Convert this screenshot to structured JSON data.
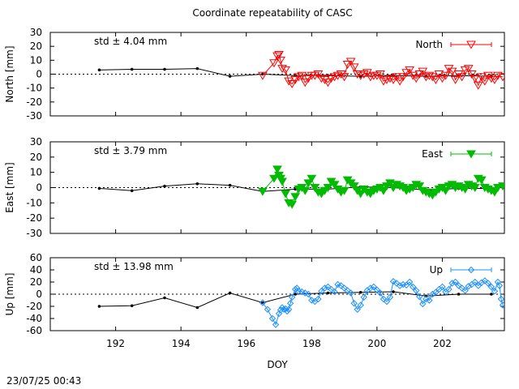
{
  "figure_title": "Coordinate repeatability of CASC",
  "footer_timestamp": "23/07/25 00:43",
  "chart_data": [
    {
      "type": "line",
      "ylabel": "North [mm]",
      "xlabel": "",
      "xlim": [
        190.0,
        203.9
      ],
      "ylim": [
        -30,
        30
      ],
      "yticks": [
        -30,
        -20,
        -10,
        0,
        10,
        20,
        30
      ],
      "xticks": [],
      "zero_line": true,
      "std_label": "std ± 4.04 mm",
      "color": "#ff0000",
      "marker": "triangle-down-open",
      "legend": {
        "label": "North",
        "position": "top-right"
      },
      "series": [
        {
          "name": "reference",
          "color": "#000000",
          "marker": "dot",
          "x": [
            191.5,
            192.5,
            193.5,
            194.5,
            195.5,
            196.5,
            197.5,
            198.5,
            199.5,
            200.5,
            201.5,
            202.5,
            203.5
          ],
          "values": [
            3,
            3.5,
            3.5,
            4,
            -1.5,
            0,
            -1,
            -1,
            -1.5,
            -1,
            -1.5,
            -1,
            -1.5
          ]
        },
        {
          "name": "North",
          "x": [
            196.5,
            196.85,
            196.95,
            197.0,
            197.05,
            197.1,
            197.2,
            197.3,
            197.4,
            197.5,
            197.6,
            197.7,
            197.8,
            197.9,
            198.0,
            198.1,
            198.2,
            198.3,
            198.4,
            198.5,
            198.6,
            198.7,
            198.8,
            198.9,
            199.0,
            199.1,
            199.2,
            199.3,
            199.4,
            199.5,
            199.6,
            199.7,
            199.8,
            199.9,
            200.0,
            200.1,
            200.2,
            200.3,
            200.4,
            200.5,
            200.6,
            200.7,
            200.8,
            200.9,
            201.0,
            201.1,
            201.2,
            201.3,
            201.4,
            201.5,
            201.6,
            201.7,
            201.8,
            201.9,
            202.0,
            202.1,
            202.2,
            202.3,
            202.4,
            202.5,
            202.6,
            202.7,
            202.8,
            202.9,
            203.0,
            203.1,
            203.2,
            203.3,
            203.4,
            203.5,
            203.6,
            203.7,
            203.85
          ],
          "values": [
            -1,
            8,
            13,
            14,
            10,
            4,
            3,
            -5,
            -7,
            -4,
            -2,
            -1,
            -6,
            -3,
            -1,
            -1,
            0,
            -3,
            -4,
            -6,
            -3,
            -2,
            -1,
            0,
            -2,
            7,
            9,
            5,
            0,
            -1,
            0,
            1,
            -2,
            -1,
            -1,
            0,
            -5,
            -4,
            -3,
            -4,
            -2,
            -5,
            -2,
            1,
            3,
            -1,
            -3,
            0,
            2,
            -2,
            -1,
            -2,
            -4,
            0,
            -3,
            -1,
            4,
            2,
            -4,
            0,
            -2,
            3,
            4,
            0,
            -3,
            -8,
            -2,
            -5,
            -1,
            -3,
            -4,
            -1,
            -2
          ]
        }
      ]
    },
    {
      "type": "line",
      "ylabel": "East [mm]",
      "xlabel": "",
      "xlim": [
        190.0,
        203.9
      ],
      "ylim": [
        -30,
        30
      ],
      "yticks": [
        -30,
        -20,
        -10,
        0,
        10,
        20,
        30
      ],
      "xticks": [],
      "zero_line": true,
      "std_label": "std ± 3.79 mm",
      "color": "#00bb00",
      "marker": "triangle-down-filled",
      "legend": {
        "label": "East",
        "position": "top-right"
      },
      "series": [
        {
          "name": "reference",
          "color": "#000000",
          "marker": "dot",
          "x": [
            191.5,
            192.5,
            193.5,
            194.5,
            195.5,
            196.5,
            197.5,
            198.5,
            199.5,
            200.5,
            201.5,
            202.5,
            203.5
          ],
          "values": [
            -0.5,
            -2,
            1,
            2.5,
            1.5,
            -2.5,
            -1,
            -1,
            0.5,
            0,
            -1.5,
            -0.5,
            -0.5
          ]
        },
        {
          "name": "East",
          "x": [
            196.5,
            196.85,
            196.95,
            197.0,
            197.05,
            197.1,
            197.2,
            197.3,
            197.4,
            197.5,
            197.6,
            197.7,
            197.8,
            197.9,
            198.0,
            198.1,
            198.2,
            198.3,
            198.4,
            198.5,
            198.6,
            198.7,
            198.8,
            198.9,
            199.0,
            199.1,
            199.2,
            199.3,
            199.4,
            199.5,
            199.6,
            199.7,
            199.8,
            199.9,
            200.0,
            200.1,
            200.2,
            200.3,
            200.4,
            200.5,
            200.6,
            200.7,
            200.8,
            200.9,
            201.0,
            201.1,
            201.2,
            201.3,
            201.4,
            201.5,
            201.6,
            201.7,
            201.8,
            201.9,
            202.0,
            202.1,
            202.2,
            202.3,
            202.4,
            202.5,
            202.6,
            202.7,
            202.8,
            202.9,
            203.0,
            203.1,
            203.2,
            203.3,
            203.4,
            203.5,
            203.6,
            203.7,
            203.85
          ],
          "values": [
            -2.5,
            6,
            12,
            8,
            6,
            4,
            -4,
            -10,
            -11,
            -6,
            -1,
            0,
            -2,
            3,
            6,
            0,
            -3,
            -4,
            -2,
            0,
            4,
            2,
            -1,
            -3,
            -2,
            5,
            3,
            1,
            -2,
            -4,
            -1,
            -3,
            -4,
            -2,
            -1,
            0,
            -2,
            1,
            3,
            0,
            2,
            1,
            0,
            -2,
            -1,
            0,
            2,
            1,
            -2,
            -3,
            -4,
            -5,
            -3,
            -1,
            0,
            -2,
            1,
            2,
            0,
            1,
            0,
            -1,
            2,
            1,
            0,
            6,
            5,
            0,
            -1,
            -2,
            -3,
            0,
            1
          ]
        }
      ]
    },
    {
      "type": "line",
      "ylabel": "Up [mm]",
      "xlabel": "DOY",
      "xlim": [
        190.0,
        203.9
      ],
      "ylim": [
        -60,
        60
      ],
      "yticks": [
        -60,
        -40,
        -20,
        0,
        20,
        40,
        60
      ],
      "xticks": [
        192,
        194,
        196,
        198,
        200,
        202
      ],
      "zero_line": true,
      "std_label": "std ± 13.98 mm",
      "color": "#1e90ff",
      "marker": "diamond-open",
      "legend": {
        "label": "Up",
        "position": "top-right"
      },
      "series": [
        {
          "name": "reference",
          "color": "#000000",
          "marker": "dot",
          "x": [
            191.5,
            192.5,
            193.5,
            194.5,
            195.5,
            196.5,
            197.5,
            198.5,
            199.5,
            200.5,
            201.5,
            202.5,
            203.5
          ],
          "values": [
            -20,
            -19,
            -6,
            -22,
            2,
            -14,
            0,
            2,
            3,
            4,
            -3,
            0,
            0
          ]
        },
        {
          "name": "Up",
          "x": [
            196.5,
            196.65,
            196.8,
            196.9,
            197.0,
            197.05,
            197.1,
            197.15,
            197.2,
            197.25,
            197.3,
            197.35,
            197.4,
            197.5,
            197.55,
            197.6,
            197.7,
            197.8,
            197.9,
            198.0,
            198.1,
            198.2,
            198.3,
            198.4,
            198.5,
            198.6,
            198.7,
            198.8,
            198.9,
            199.0,
            199.1,
            199.2,
            199.3,
            199.4,
            199.5,
            199.6,
            199.7,
            199.8,
            199.9,
            200.0,
            200.1,
            200.2,
            200.3,
            200.4,
            200.5,
            200.6,
            200.7,
            200.8,
            200.9,
            201.0,
            201.1,
            201.2,
            201.3,
            201.4,
            201.5,
            201.6,
            201.7,
            201.8,
            201.9,
            202.0,
            202.1,
            202.2,
            202.3,
            202.4,
            202.5,
            202.6,
            202.7,
            202.8,
            202.9,
            203.0,
            203.1,
            203.2,
            203.3,
            203.4,
            203.5,
            203.6,
            203.7,
            203.75,
            203.8,
            203.85
          ],
          "values": [
            -14,
            -25,
            -40,
            -50,
            -32,
            -26,
            -22,
            -25,
            -24,
            -28,
            -25,
            -15,
            -5,
            8,
            10,
            5,
            4,
            2,
            0,
            -10,
            -12,
            -8,
            5,
            10,
            12,
            8,
            4,
            16,
            14,
            10,
            6,
            2,
            -15,
            -25,
            -18,
            -5,
            6,
            10,
            12,
            7,
            2,
            -8,
            -12,
            -5,
            21,
            18,
            14,
            16,
            15,
            20,
            12,
            6,
            -4,
            -16,
            -8,
            -10,
            0,
            3,
            8,
            12,
            4,
            8,
            18,
            20,
            14,
            10,
            6,
            13,
            16,
            20,
            14,
            19,
            22,
            18,
            12,
            5,
            20,
            14,
            -8,
            -18
          ]
        }
      ]
    }
  ]
}
